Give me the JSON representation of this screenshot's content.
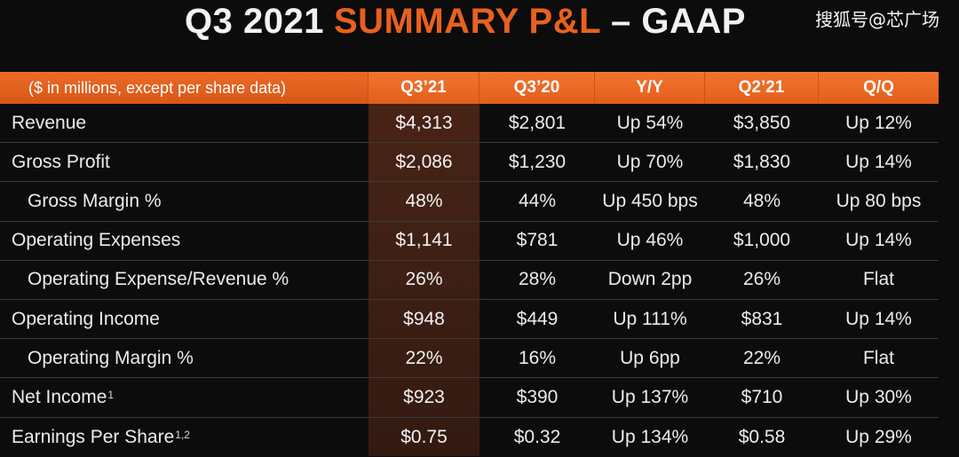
{
  "slide": {
    "title_part1": "Q3 2021",
    "title_part2": "SUMMARY P&L",
    "title_part3": "– GAAP",
    "watermark": "搜狐号@芯广场"
  },
  "table": {
    "headers": [
      "($ in millions, except per share data)",
      "Q3’21",
      "Q3’20",
      "Y/Y",
      "Q2’21",
      "Q/Q"
    ],
    "rows": [
      {
        "label": "Revenue",
        "note": "",
        "values": [
          "$4,313",
          "$2,801",
          "Up 54%",
          "$3,850",
          "Up 12%"
        ]
      },
      {
        "label": "Gross Profit",
        "note": "",
        "values": [
          "$2,086",
          "$1,230",
          "Up 70%",
          "$1,830",
          "Up 14%"
        ]
      },
      {
        "label": "Gross Margin %",
        "note": "",
        "values": [
          "48%",
          "44%",
          "Up 450 bps",
          "48%",
          "Up 80 bps"
        ]
      },
      {
        "label": "Operating Expenses",
        "note": "",
        "values": [
          "$1,141",
          "$781",
          "Up 46%",
          "$1,000",
          "Up 14%"
        ]
      },
      {
        "label": "Operating Expense/Revenue %",
        "note": "",
        "values": [
          "26%",
          "28%",
          "Down 2pp",
          "26%",
          "Flat"
        ]
      },
      {
        "label": "Operating Income",
        "note": "",
        "values": [
          "$948",
          "$449",
          "Up 111%",
          "$831",
          "Up 14%"
        ]
      },
      {
        "label": "Operating Margin %",
        "note": "",
        "values": [
          "22%",
          "16%",
          "Up 6pp",
          "22%",
          "Flat"
        ]
      },
      {
        "label": "Net Income",
        "note": "1",
        "values": [
          "$923",
          "$390",
          "Up 137%",
          "$710",
          "Up 30%"
        ]
      },
      {
        "label": "Earnings Per Share",
        "note": "1,2",
        "values": [
          "$0.75",
          "$0.32",
          "Up 134%",
          "$0.58",
          "Up 29%"
        ]
      }
    ]
  },
  "colors": {
    "accent": "#e8611f",
    "header_bg": "#e35f1a",
    "highlight_column": "#3e2015",
    "background": "#0c0c0c",
    "text": "#ececec"
  }
}
